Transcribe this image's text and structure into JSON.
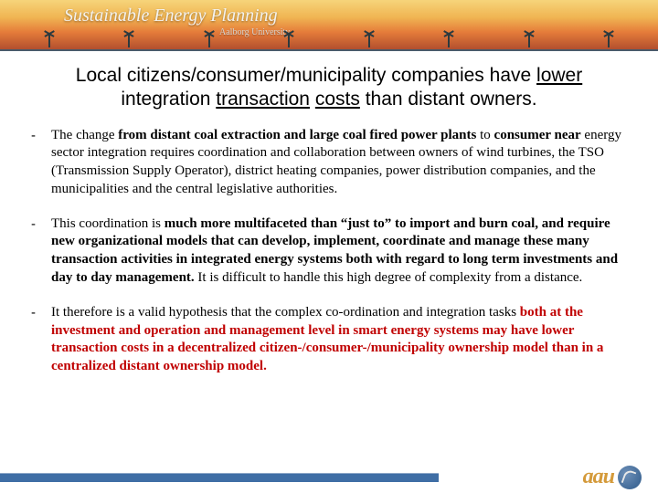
{
  "banner": {
    "title": "Sustainable Energy Planning",
    "subtitle": "Aalborg University"
  },
  "heading": {
    "pre": "Local citizens/consumer/municipality companies have ",
    "ul1": "lower",
    "mid1": " integration ",
    "ul2": "transaction",
    "mid2": " ",
    "ul3": "costs",
    "post": " than distant owners."
  },
  "bullets": [
    {
      "dash": "-",
      "segments": [
        {
          "t": "The change ",
          "b": false
        },
        {
          "t": "from distant coal extraction and large coal fired power plants",
          "b": true
        },
        {
          "t": " to ",
          "b": false
        },
        {
          "t": "consumer near",
          "b": true
        },
        {
          "t": " energy sector integration requires coordination and collaboration between owners of wind turbines, the TSO (Transmission Supply Operator), district heating companies, power distribution companies, and the municipalities and the central legislative authorities.",
          "b": false
        }
      ]
    },
    {
      "dash": "-",
      "segments": [
        {
          "t": "This coordination is ",
          "b": false
        },
        {
          "t": "much more multifaceted than “just to” to import and burn coal, and require new organizational models that can develop, implement, coordinate and manage these many transaction activities in integrated energy systems both with regard to long term investments and day to day management. ",
          "b": true
        },
        {
          "t": "It is difficult to handle this high  degree of complexity from a distance.",
          "b": false
        }
      ]
    },
    {
      "dash": "-",
      "segments": [
        {
          "t": "It therefore is a valid hypothesis that  the complex co-ordination and integration tasks ",
          "b": false
        },
        {
          "t": "both at the investment and operation and management level in smart energy systems may have lower transaction costs in a decentralized citizen-/consumer-/municipality ownership model than in a centralized distant ownership model.",
          "b": true,
          "red": true
        }
      ]
    }
  ],
  "logo": {
    "text": "aau"
  }
}
